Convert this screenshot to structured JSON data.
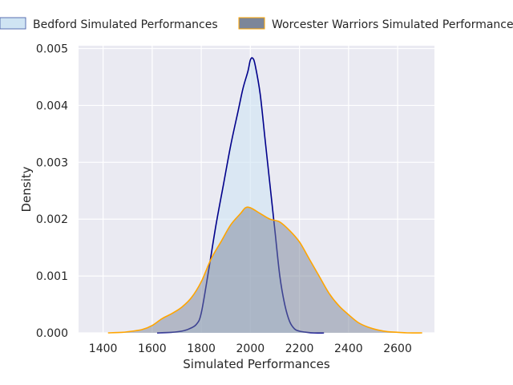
{
  "chart_data": {
    "type": "area",
    "xlabel": "Simulated Performances",
    "ylabel": "Density",
    "xlim": [
      1300,
      2750
    ],
    "ylim": [
      0,
      0.00505
    ],
    "x_ticks": [
      1400,
      1600,
      1800,
      2000,
      2200,
      2400,
      2600
    ],
    "x_tick_labels": [
      "1400",
      "1600",
      "1800",
      "2000",
      "2200",
      "2400",
      "2600"
    ],
    "y_ticks": [
      0,
      0.001,
      0.002,
      0.003,
      0.004,
      0.005
    ],
    "y_tick_labels": [
      "0.000",
      "0.001",
      "0.002",
      "0.003",
      "0.004",
      "0.005"
    ],
    "grid": true,
    "legend_position": "top",
    "series": [
      {
        "name": "Bedford Simulated Performances",
        "line_color": "#00008b",
        "fill_color": "#cfe4f3",
        "x": [
          1620,
          1680,
          1720,
          1750,
          1780,
          1800,
          1830,
          1860,
          1890,
          1920,
          1950,
          1970,
          1990,
          2000,
          2010,
          2020,
          2040,
          2060,
          2080,
          2100,
          2120,
          2140,
          2160,
          2180,
          2200,
          2230,
          2260,
          2300
        ],
        "y": [
          0.0,
          1e-05,
          3e-05,
          7e-05,
          0.00015,
          0.00035,
          0.0011,
          0.0019,
          0.0026,
          0.0033,
          0.0039,
          0.0043,
          0.0046,
          0.0048,
          0.00483,
          0.0047,
          0.0042,
          0.0034,
          0.0026,
          0.0018,
          0.001,
          0.0005,
          0.0002,
          7e-05,
          3e-05,
          1e-05,
          0.0,
          0.0
        ]
      },
      {
        "name": "Worcester Warriors Simulated Performances",
        "line_color": "#ffa500",
        "fill_color": "#7c8699",
        "x": [
          1420,
          1480,
          1520,
          1560,
          1600,
          1640,
          1680,
          1720,
          1760,
          1800,
          1840,
          1880,
          1920,
          1960,
          1980,
          2000,
          2040,
          2080,
          2120,
          2160,
          2200,
          2240,
          2280,
          2320,
          2360,
          2400,
          2440,
          2480,
          2520,
          2560,
          2600,
          2640,
          2700
        ],
        "y": [
          0.0,
          1e-05,
          3e-05,
          6e-05,
          0.00013,
          0.00025,
          0.00034,
          0.00045,
          0.00062,
          0.0009,
          0.0013,
          0.0016,
          0.0019,
          0.0021,
          0.0022,
          0.0022,
          0.0021,
          0.002,
          0.00195,
          0.0018,
          0.0016,
          0.0013,
          0.001,
          0.0007,
          0.00048,
          0.00032,
          0.00018,
          0.0001,
          5e-05,
          2e-05,
          1e-05,
          0.0,
          0.0
        ]
      }
    ]
  }
}
